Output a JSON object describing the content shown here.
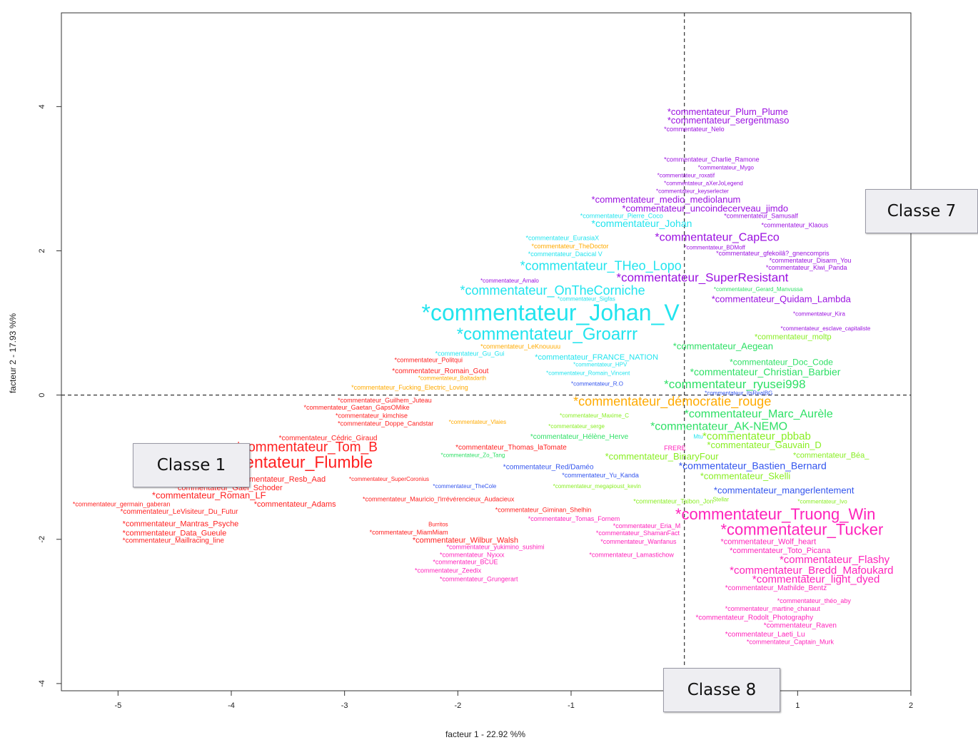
{
  "chart_data": {
    "type": "scatter",
    "title": "",
    "xlabel": "facteur  1  - 22.92 %%",
    "ylabel": "facteur  2  - 17.93 %%",
    "xlim": [
      -5.5,
      2.0
    ],
    "ylim": [
      -4.1,
      5.3
    ],
    "xticks": [
      "-5",
      "-4",
      "-3",
      "-2",
      "-1",
      "0",
      "1",
      "2"
    ],
    "yticks": [
      "-4",
      "-2",
      "0",
      "2",
      "4"
    ],
    "reference_lines": {
      "x": 0,
      "y": 0,
      "style": "dashed"
    },
    "colors": {
      "red": "#ff2020",
      "orange": "#ffaa00",
      "cyan": "#22e4ee",
      "purple": "#9b10e0",
      "green": "#2ee066",
      "lime": "#88ee22",
      "blue": "#3355ee",
      "magenta": "#ff22bb"
    },
    "points": [
      {
        "label": "*commentateur_Plum_Plume",
        "x": -0.15,
        "y": 3.92,
        "size": 13,
        "color": "purple"
      },
      {
        "label": "*commentateur_sergentmaso",
        "x": -0.15,
        "y": 3.8,
        "size": 13,
        "color": "purple"
      },
      {
        "label": "*commentateur_Nelo",
        "x": -0.18,
        "y": 3.68,
        "size": 9,
        "color": "purple"
      },
      {
        "label": "*commentateur_Charlie_Ramone",
        "x": -0.18,
        "y": 3.26,
        "size": 9,
        "color": "purple"
      },
      {
        "label": "*commentateur_Mygo",
        "x": 0.12,
        "y": 3.15,
        "size": 8,
        "color": "purple"
      },
      {
        "label": "*commentateur_roxatif",
        "x": -0.24,
        "y": 3.04,
        "size": 8,
        "color": "purple"
      },
      {
        "label": "*commentateur_aXerJoLegend",
        "x": -0.18,
        "y": 2.93,
        "size": 8,
        "color": "purple"
      },
      {
        "label": "*commentateur_keyserlecter",
        "x": -0.25,
        "y": 2.82,
        "size": 8,
        "color": "purple"
      },
      {
        "label": "*commentateur_medio_mediolanum",
        "x": -0.82,
        "y": 2.7,
        "size": 13,
        "color": "purple"
      },
      {
        "label": "*commentateur_uncoindecerveau_jimdo",
        "x": -0.55,
        "y": 2.58,
        "size": 13,
        "color": "purple"
      },
      {
        "label": "*commentateur_Pierre_Coco",
        "x": -0.92,
        "y": 2.48,
        "size": 9,
        "color": "cyan"
      },
      {
        "label": "*commentateur_Samusalf",
        "x": 0.35,
        "y": 2.48,
        "size": 9,
        "color": "purple"
      },
      {
        "label": "*commentateur_Johan",
        "x": -0.82,
        "y": 2.37,
        "size": 14,
        "color": "cyan"
      },
      {
        "label": "*commentateur_Klaous",
        "x": 0.68,
        "y": 2.35,
        "size": 9,
        "color": "purple"
      },
      {
        "label": "*commentateur_CapEco",
        "x": -0.26,
        "y": 2.18,
        "size": 16,
        "color": "purple"
      },
      {
        "label": "*commentateur_EurasiaX",
        "x": -1.4,
        "y": 2.17,
        "size": 9,
        "color": "cyan"
      },
      {
        "label": "*commentateur_TheDoctor",
        "x": -1.35,
        "y": 2.06,
        "size": 9,
        "color": "orange"
      },
      {
        "label": "*commentateur_BDMoff",
        "x": 0.0,
        "y": 2.04,
        "size": 8,
        "color": "purple"
      },
      {
        "label": "*commentateur_Dacical V",
        "x": -1.38,
        "y": 1.95,
        "size": 9,
        "color": "cyan"
      },
      {
        "label": "*commentateur_gfekoilâ?_gnencompris",
        "x": 0.28,
        "y": 1.96,
        "size": 9,
        "color": "purple"
      },
      {
        "label": "*commentateur_Disarm_You",
        "x": 0.75,
        "y": 1.86,
        "size": 9,
        "color": "purple"
      },
      {
        "label": "*commentateur_THeo_Lopo",
        "x": -1.45,
        "y": 1.78,
        "size": 18,
        "color": "cyan"
      },
      {
        "label": "*commentateur_Kiwi_Panda",
        "x": 0.72,
        "y": 1.76,
        "size": 9,
        "color": "purple"
      },
      {
        "label": "*commentateur_SuperResistant",
        "x": -0.6,
        "y": 1.62,
        "size": 17,
        "color": "purple"
      },
      {
        "label": "*commentateur_Arnalo",
        "x": -1.8,
        "y": 1.58,
        "size": 8,
        "color": "purple"
      },
      {
        "label": "*commentateur_OnTheCorniche",
        "x": -1.98,
        "y": 1.44,
        "size": 18,
        "color": "cyan"
      },
      {
        "label": "*commentateur_Gerard_Manvussa",
        "x": 0.26,
        "y": 1.46,
        "size": 8,
        "color": "green"
      },
      {
        "label": "*commentateur_Sigfas",
        "x": -1.12,
        "y": 1.33,
        "size": 8,
        "color": "cyan"
      },
      {
        "label": "*commentateur_Quidam_Lambda",
        "x": 0.24,
        "y": 1.32,
        "size": 13,
        "color": "purple"
      },
      {
        "label": "*commentateur_Johan_V",
        "x": -2.32,
        "y": 1.12,
        "size": 32,
        "color": "cyan"
      },
      {
        "label": "*commentateur_Kira",
        "x": 0.96,
        "y": 1.12,
        "size": 8,
        "color": "purple"
      },
      {
        "label": "*commentateur_Groarrr",
        "x": -2.01,
        "y": 0.83,
        "size": 24,
        "color": "cyan"
      },
      {
        "label": "*commentateur_esclave_capitaliste",
        "x": 0.85,
        "y": 0.92,
        "size": 8,
        "color": "purple"
      },
      {
        "label": "*commentateur_moltp",
        "x": 0.62,
        "y": 0.8,
        "size": 11,
        "color": "lime"
      },
      {
        "label": "*commentateur_LeKnouuuu",
        "x": -1.8,
        "y": 0.67,
        "size": 9,
        "color": "orange"
      },
      {
        "label": "*commentateur_Aegean",
        "x": -0.1,
        "y": 0.67,
        "size": 13,
        "color": "green"
      },
      {
        "label": "*commentateur_Gu_Gui",
        "x": -2.2,
        "y": 0.57,
        "size": 9,
        "color": "cyan"
      },
      {
        "label": "*commentateur_FRANCE_NATION",
        "x": -1.32,
        "y": 0.52,
        "size": 11,
        "color": "cyan"
      },
      {
        "label": "*commentateur_Politqui",
        "x": -2.56,
        "y": 0.48,
        "size": 9,
        "color": "red"
      },
      {
        "label": "*commentateur_HPV",
        "x": -0.98,
        "y": 0.42,
        "size": 8,
        "color": "cyan"
      },
      {
        "label": "*commentateur_Doc_Code",
        "x": 0.4,
        "y": 0.45,
        "size": 12,
        "color": "green"
      },
      {
        "label": "*commentateur_Romain_Gout",
        "x": -2.58,
        "y": 0.33,
        "size": 10,
        "color": "red"
      },
      {
        "label": "*commentateur_Romain_Vincent",
        "x": -1.22,
        "y": 0.3,
        "size": 8,
        "color": "cyan"
      },
      {
        "label": "*commentateur_Christian_Barbier",
        "x": 0.05,
        "y": 0.31,
        "size": 14,
        "color": "green"
      },
      {
        "label": "*commentateur_Baltadarth",
        "x": -2.35,
        "y": 0.23,
        "size": 8,
        "color": "orange"
      },
      {
        "label": "*commentateur_R.O",
        "x": -1.0,
        "y": 0.15,
        "size": 8,
        "color": "blue"
      },
      {
        "label": "*commentateur_ryusei998",
        "x": -0.18,
        "y": 0.14,
        "size": 17,
        "color": "green"
      },
      {
        "label": "*commentateur_Fucking_Electric_Loving",
        "x": -2.94,
        "y": 0.1,
        "size": 9,
        "color": "orange"
      },
      {
        "label": "*commentateur_ItsRealBG",
        "x": 0.18,
        "y": 0.02,
        "size": 8,
        "color": "blue"
      },
      {
        "label": "*commentateur_Guilhem_Juteau",
        "x": -3.06,
        "y": -0.08,
        "size": 9,
        "color": "red"
      },
      {
        "label": "*commentateur_démocratie_rouge",
        "x": -0.98,
        "y": -0.1,
        "size": 18,
        "color": "orange"
      },
      {
        "label": "*commentateur_Gaetan_GapsOMike",
        "x": -3.36,
        "y": -0.18,
        "size": 9,
        "color": "red"
      },
      {
        "label": "*commentateur_kimchise",
        "x": -3.08,
        "y": -0.29,
        "size": 9,
        "color": "red"
      },
      {
        "label": "*commentateur_Maxime_C",
        "x": -1.1,
        "y": -0.29,
        "size": 8,
        "color": "lime"
      },
      {
        "label": "*commentateur_Marc_Aurèle",
        "x": 0.0,
        "y": -0.27,
        "size": 16,
        "color": "green"
      },
      {
        "label": "*commentateur_Doppe_Candstar",
        "x": -3.06,
        "y": -0.4,
        "size": 9,
        "color": "red"
      },
      {
        "label": "*commentateur_Vlaies",
        "x": -2.08,
        "y": -0.38,
        "size": 8,
        "color": "orange"
      },
      {
        "label": "*commentateur_serge",
        "x": -1.2,
        "y": -0.44,
        "size": 8,
        "color": "lime"
      },
      {
        "label": "*commentateur_AK-NEMO",
        "x": -0.3,
        "y": -0.44,
        "size": 16,
        "color": "green"
      },
      {
        "label": "*commentateur_Cédric_Giraud",
        "x": -3.58,
        "y": -0.6,
        "size": 10,
        "color": "red"
      },
      {
        "label": "*commentateur_Hélène_Herve",
        "x": -1.36,
        "y": -0.58,
        "size": 10,
        "color": "green"
      },
      {
        "label": "Mtu",
        "x": 0.08,
        "y": -0.58,
        "size": 8,
        "color": "cyan"
      },
      {
        "label": "*commentateur_pbbab",
        "x": 0.16,
        "y": -0.58,
        "size": 15,
        "color": "lime"
      },
      {
        "label": "*commentateur_Tom_B",
        "x": -3.96,
        "y": -0.73,
        "size": 19,
        "color": "red"
      },
      {
        "label": "*commentateur_Thomas_laTomate",
        "x": -2.02,
        "y": -0.73,
        "size": 10,
        "color": "red"
      },
      {
        "label": "FRERE",
        "x": -0.18,
        "y": -0.74,
        "size": 9,
        "color": "magenta"
      },
      {
        "label": "*commentateur_Gauvain_D",
        "x": 0.2,
        "y": -0.7,
        "size": 13,
        "color": "lime"
      },
      {
        "label": "*commentateur_Zo_Tang",
        "x": -2.15,
        "y": -0.84,
        "size": 8,
        "color": "green"
      },
      {
        "label": "*commentateur_BinaryFour",
        "x": -0.7,
        "y": -0.86,
        "size": 13,
        "color": "lime"
      },
      {
        "label": "*commentateur_Béa_",
        "x": 0.96,
        "y": -0.84,
        "size": 11,
        "color": "lime"
      },
      {
        "label": "*commentateur_Flumble",
        "x": -4.33,
        "y": -0.95,
        "size": 23,
        "color": "red"
      },
      {
        "label": "*commentateur_Red/Daméo",
        "x": -1.6,
        "y": -1.0,
        "size": 10,
        "color": "blue"
      },
      {
        "label": "*commentateur_Bastien_Bernard",
        "x": -0.05,
        "y": -0.99,
        "size": 14,
        "color": "blue"
      },
      {
        "label": "*commentateur_Yu_Kanda",
        "x": -1.08,
        "y": -1.12,
        "size": 9,
        "color": "blue"
      },
      {
        "label": "*commentateur_Skelli",
        "x": 0.14,
        "y": -1.13,
        "size": 13,
        "color": "lime"
      },
      {
        "label": "*commentateur_Resb_Aad",
        "x": -4.0,
        "y": -1.17,
        "size": 11,
        "color": "red"
      },
      {
        "label": "*commentateur_SuperCoronius",
        "x": -2.96,
        "y": -1.17,
        "size": 8,
        "color": "red"
      },
      {
        "label": "*commentateur_TheCole",
        "x": -2.22,
        "y": -1.27,
        "size": 8,
        "color": "blue"
      },
      {
        "label": "*commentateur_megapioust_kevin",
        "x": -1.16,
        "y": -1.27,
        "size": 8,
        "color": "lime"
      },
      {
        "label": "*commentateur_Gael_Schoder",
        "x": -4.5,
        "y": -1.29,
        "size": 11,
        "color": "red"
      },
      {
        "label": "*commentateur_mangerlentement",
        "x": 0.26,
        "y": -1.33,
        "size": 13,
        "color": "blue"
      },
      {
        "label": "*commentateur_Roman_LF",
        "x": -4.7,
        "y": -1.4,
        "size": 13,
        "color": "red"
      },
      {
        "label": "*commentateur_Mauricio_l'irrévérencieux_Audacieux",
        "x": -2.84,
        "y": -1.45,
        "size": 9,
        "color": "red"
      },
      {
        "label": "*commentateur_Taibon_Jon",
        "x": -0.45,
        "y": -1.48,
        "size": 9,
        "color": "lime"
      },
      {
        "label": "Stellar",
        "x": 0.25,
        "y": -1.45,
        "size": 8,
        "color": "lime"
      },
      {
        "label": "*commentateur_Ivo",
        "x": 1.0,
        "y": -1.48,
        "size": 8,
        "color": "lime"
      },
      {
        "label": "*commentateur_germain_gaberan",
        "x": -5.4,
        "y": -1.52,
        "size": 9,
        "color": "red"
      },
      {
        "label": "*commentateur_Adams",
        "x": -3.8,
        "y": -1.52,
        "size": 11,
        "color": "red"
      },
      {
        "label": "*commentateur_LeVisiteur_Du_Futur",
        "x": -4.98,
        "y": -1.62,
        "size": 10,
        "color": "red"
      },
      {
        "label": "*commentateur_Giminan_Shelhin",
        "x": -1.67,
        "y": -1.6,
        "size": 9,
        "color": "red"
      },
      {
        "label": "*commentateur_Truong_Win",
        "x": -0.08,
        "y": -1.67,
        "size": 22,
        "color": "magenta"
      },
      {
        "label": "*commentateur_Tomas_Fornem",
        "x": -1.38,
        "y": -1.72,
        "size": 9,
        "color": "magenta"
      },
      {
        "label": "*commentateur_Mantras_Psyche",
        "x": -4.96,
        "y": -1.79,
        "size": 11,
        "color": "red"
      },
      {
        "label": "Burritos",
        "x": -2.26,
        "y": -1.8,
        "size": 8,
        "color": "red"
      },
      {
        "label": "*commentateur_Eria_M",
        "x": -0.63,
        "y": -1.82,
        "size": 9,
        "color": "magenta"
      },
      {
        "label": "*commentateur_Tucker",
        "x": 0.32,
        "y": -1.88,
        "size": 22,
        "color": "magenta"
      },
      {
        "label": "*commentateur_Data_Gueule",
        "x": -4.96,
        "y": -1.92,
        "size": 11,
        "color": "red"
      },
      {
        "label": "*commentateur_MiamMiam",
        "x": -2.78,
        "y": -1.91,
        "size": 9,
        "color": "red"
      },
      {
        "label": "*commentateur_ShamanFact",
        "x": -0.78,
        "y": -1.92,
        "size": 9,
        "color": "magenta"
      },
      {
        "label": "*commentateur_Maillracing_line",
        "x": -4.96,
        "y": -2.02,
        "size": 10,
        "color": "red"
      },
      {
        "label": "*commentateur_Wilbur_Walsh",
        "x": -2.4,
        "y": -2.02,
        "size": 11,
        "color": "red"
      },
      {
        "label": "*commentateur_Wanfanus",
        "x": -0.74,
        "y": -2.04,
        "size": 9,
        "color": "magenta"
      },
      {
        "label": "*commentateur_Wolf_heart",
        "x": 0.32,
        "y": -2.04,
        "size": 11,
        "color": "magenta"
      },
      {
        "label": "*commentateur_yukimino_sushimi",
        "x": -2.1,
        "y": -2.11,
        "size": 9,
        "color": "magenta"
      },
      {
        "label": "*commentateur_Toto_Picana",
        "x": 0.4,
        "y": -2.16,
        "size": 11,
        "color": "magenta"
      },
      {
        "label": "*commentateur_Nyxxx",
        "x": -2.16,
        "y": -2.22,
        "size": 9,
        "color": "magenta"
      },
      {
        "label": "*commentateur_Lamastichow",
        "x": -0.84,
        "y": -2.22,
        "size": 9,
        "color": "magenta"
      },
      {
        "label": "*commentateur_Flashy",
        "x": 0.84,
        "y": -2.29,
        "size": 15,
        "color": "magenta"
      },
      {
        "label": "*commentateur_BCUE",
        "x": -2.22,
        "y": -2.32,
        "size": 9,
        "color": "magenta"
      },
      {
        "label": "*commentateur_Bredd_Mafoukard",
        "x": 0.4,
        "y": -2.44,
        "size": 15,
        "color": "magenta"
      },
      {
        "label": "*commentateur_Zeedix",
        "x": -2.38,
        "y": -2.44,
        "size": 9,
        "color": "magenta"
      },
      {
        "label": "*commentateur_light_dyed",
        "x": 0.6,
        "y": -2.56,
        "size": 15,
        "color": "magenta"
      },
      {
        "label": "*commentateur_Grungerart",
        "x": -2.16,
        "y": -2.56,
        "size": 9,
        "color": "magenta"
      },
      {
        "label": "*commentateur_Mathilde_Bentz",
        "x": 0.36,
        "y": -2.68,
        "size": 10,
        "color": "magenta"
      },
      {
        "label": "*commentateur_théo_aby",
        "x": 0.82,
        "y": -2.86,
        "size": 9,
        "color": "magenta"
      },
      {
        "label": "*commentateur_martine_chanaut",
        "x": 0.36,
        "y": -2.97,
        "size": 9,
        "color": "magenta"
      },
      {
        "label": "*commentateur_Rodolt_Photography",
        "x": 0.1,
        "y": -3.09,
        "size": 10,
        "color": "magenta"
      },
      {
        "label": "*commentateur_Raven",
        "x": 0.7,
        "y": -3.2,
        "size": 10,
        "color": "magenta"
      },
      {
        "label": "*commentateur_Laeti_Lu",
        "x": 0.36,
        "y": -3.32,
        "size": 10,
        "color": "magenta"
      },
      {
        "label": "*commentateur_Captain_Murk",
        "x": 0.55,
        "y": -3.43,
        "size": 9,
        "color": "magenta"
      }
    ],
    "annotations": [
      {
        "label": "Classe 7"
      },
      {
        "label": "Classe 1"
      },
      {
        "label": "Classe 8"
      }
    ]
  }
}
